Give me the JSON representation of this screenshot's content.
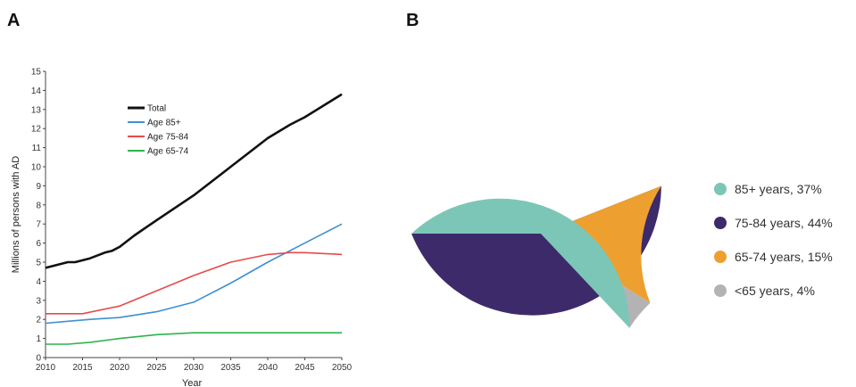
{
  "panels": {
    "a": "A",
    "b": "B"
  },
  "chart_data": [
    {
      "type": "line",
      "xlabel": "Year",
      "ylabel": "Millions of persons with AD",
      "xlim": [
        2010,
        2050
      ],
      "ylim": [
        0,
        15
      ],
      "xticks": [
        "2010",
        "2015",
        "2020",
        "2025",
        "2030",
        "2035",
        "2040",
        "2045",
        "2050"
      ],
      "yticks": [
        "0",
        "1",
        "2",
        "3",
        "4",
        "5",
        "6",
        "7",
        "8",
        "9",
        "10",
        "11",
        "12",
        "13",
        "14",
        "15"
      ],
      "grid": false,
      "legend_position": "top-center",
      "series": [
        {
          "name": "Total",
          "color": "#111111",
          "x": [
            2010,
            2012,
            2013,
            2014,
            2016,
            2018,
            2019,
            2020,
            2022,
            2025,
            2030,
            2035,
            2040,
            2043,
            2045,
            2050
          ],
          "y": [
            4.7,
            4.9,
            5.0,
            5.0,
            5.2,
            5.5,
            5.6,
            5.8,
            6.4,
            7.2,
            8.5,
            10.0,
            11.5,
            12.2,
            12.6,
            13.8
          ]
        },
        {
          "name": "Age 85+",
          "color": "#3f8fd2",
          "x": [
            2010,
            2013,
            2016,
            2020,
            2025,
            2030,
            2035,
            2040,
            2045,
            2050
          ],
          "y": [
            1.8,
            1.9,
            2.0,
            2.1,
            2.4,
            2.9,
            3.9,
            5.0,
            6.0,
            7.0
          ]
        },
        {
          "name": "Age 75-84",
          "color": "#e84a4a",
          "x": [
            2010,
            2015,
            2020,
            2025,
            2030,
            2035,
            2040,
            2043,
            2045,
            2050
          ],
          "y": [
            2.3,
            2.3,
            2.7,
            3.5,
            4.3,
            5.0,
            5.4,
            5.5,
            5.5,
            5.4
          ]
        },
        {
          "name": "Age 65-74",
          "color": "#2db34a",
          "x": [
            2010,
            2013,
            2016,
            2020,
            2025,
            2030,
            2035,
            2040,
            2045,
            2050
          ],
          "y": [
            0.7,
            0.7,
            0.8,
            1.0,
            1.2,
            1.3,
            1.3,
            1.3,
            1.3,
            1.3
          ]
        }
      ]
    },
    {
      "type": "pie",
      "legend_position": "right",
      "slices": [
        {
          "label": "85+ years, 37%",
          "value": 37,
          "color": "#7cc6b7"
        },
        {
          "label": "75-84 years, 44%",
          "value": 44,
          "color": "#3d2a6b"
        },
        {
          "label": "65-74 years, 15%",
          "value": 15,
          "color": "#eda02f"
        },
        {
          "label": "<65 years, 4%",
          "value": 4,
          "color": "#b3b3b3"
        }
      ]
    }
  ]
}
